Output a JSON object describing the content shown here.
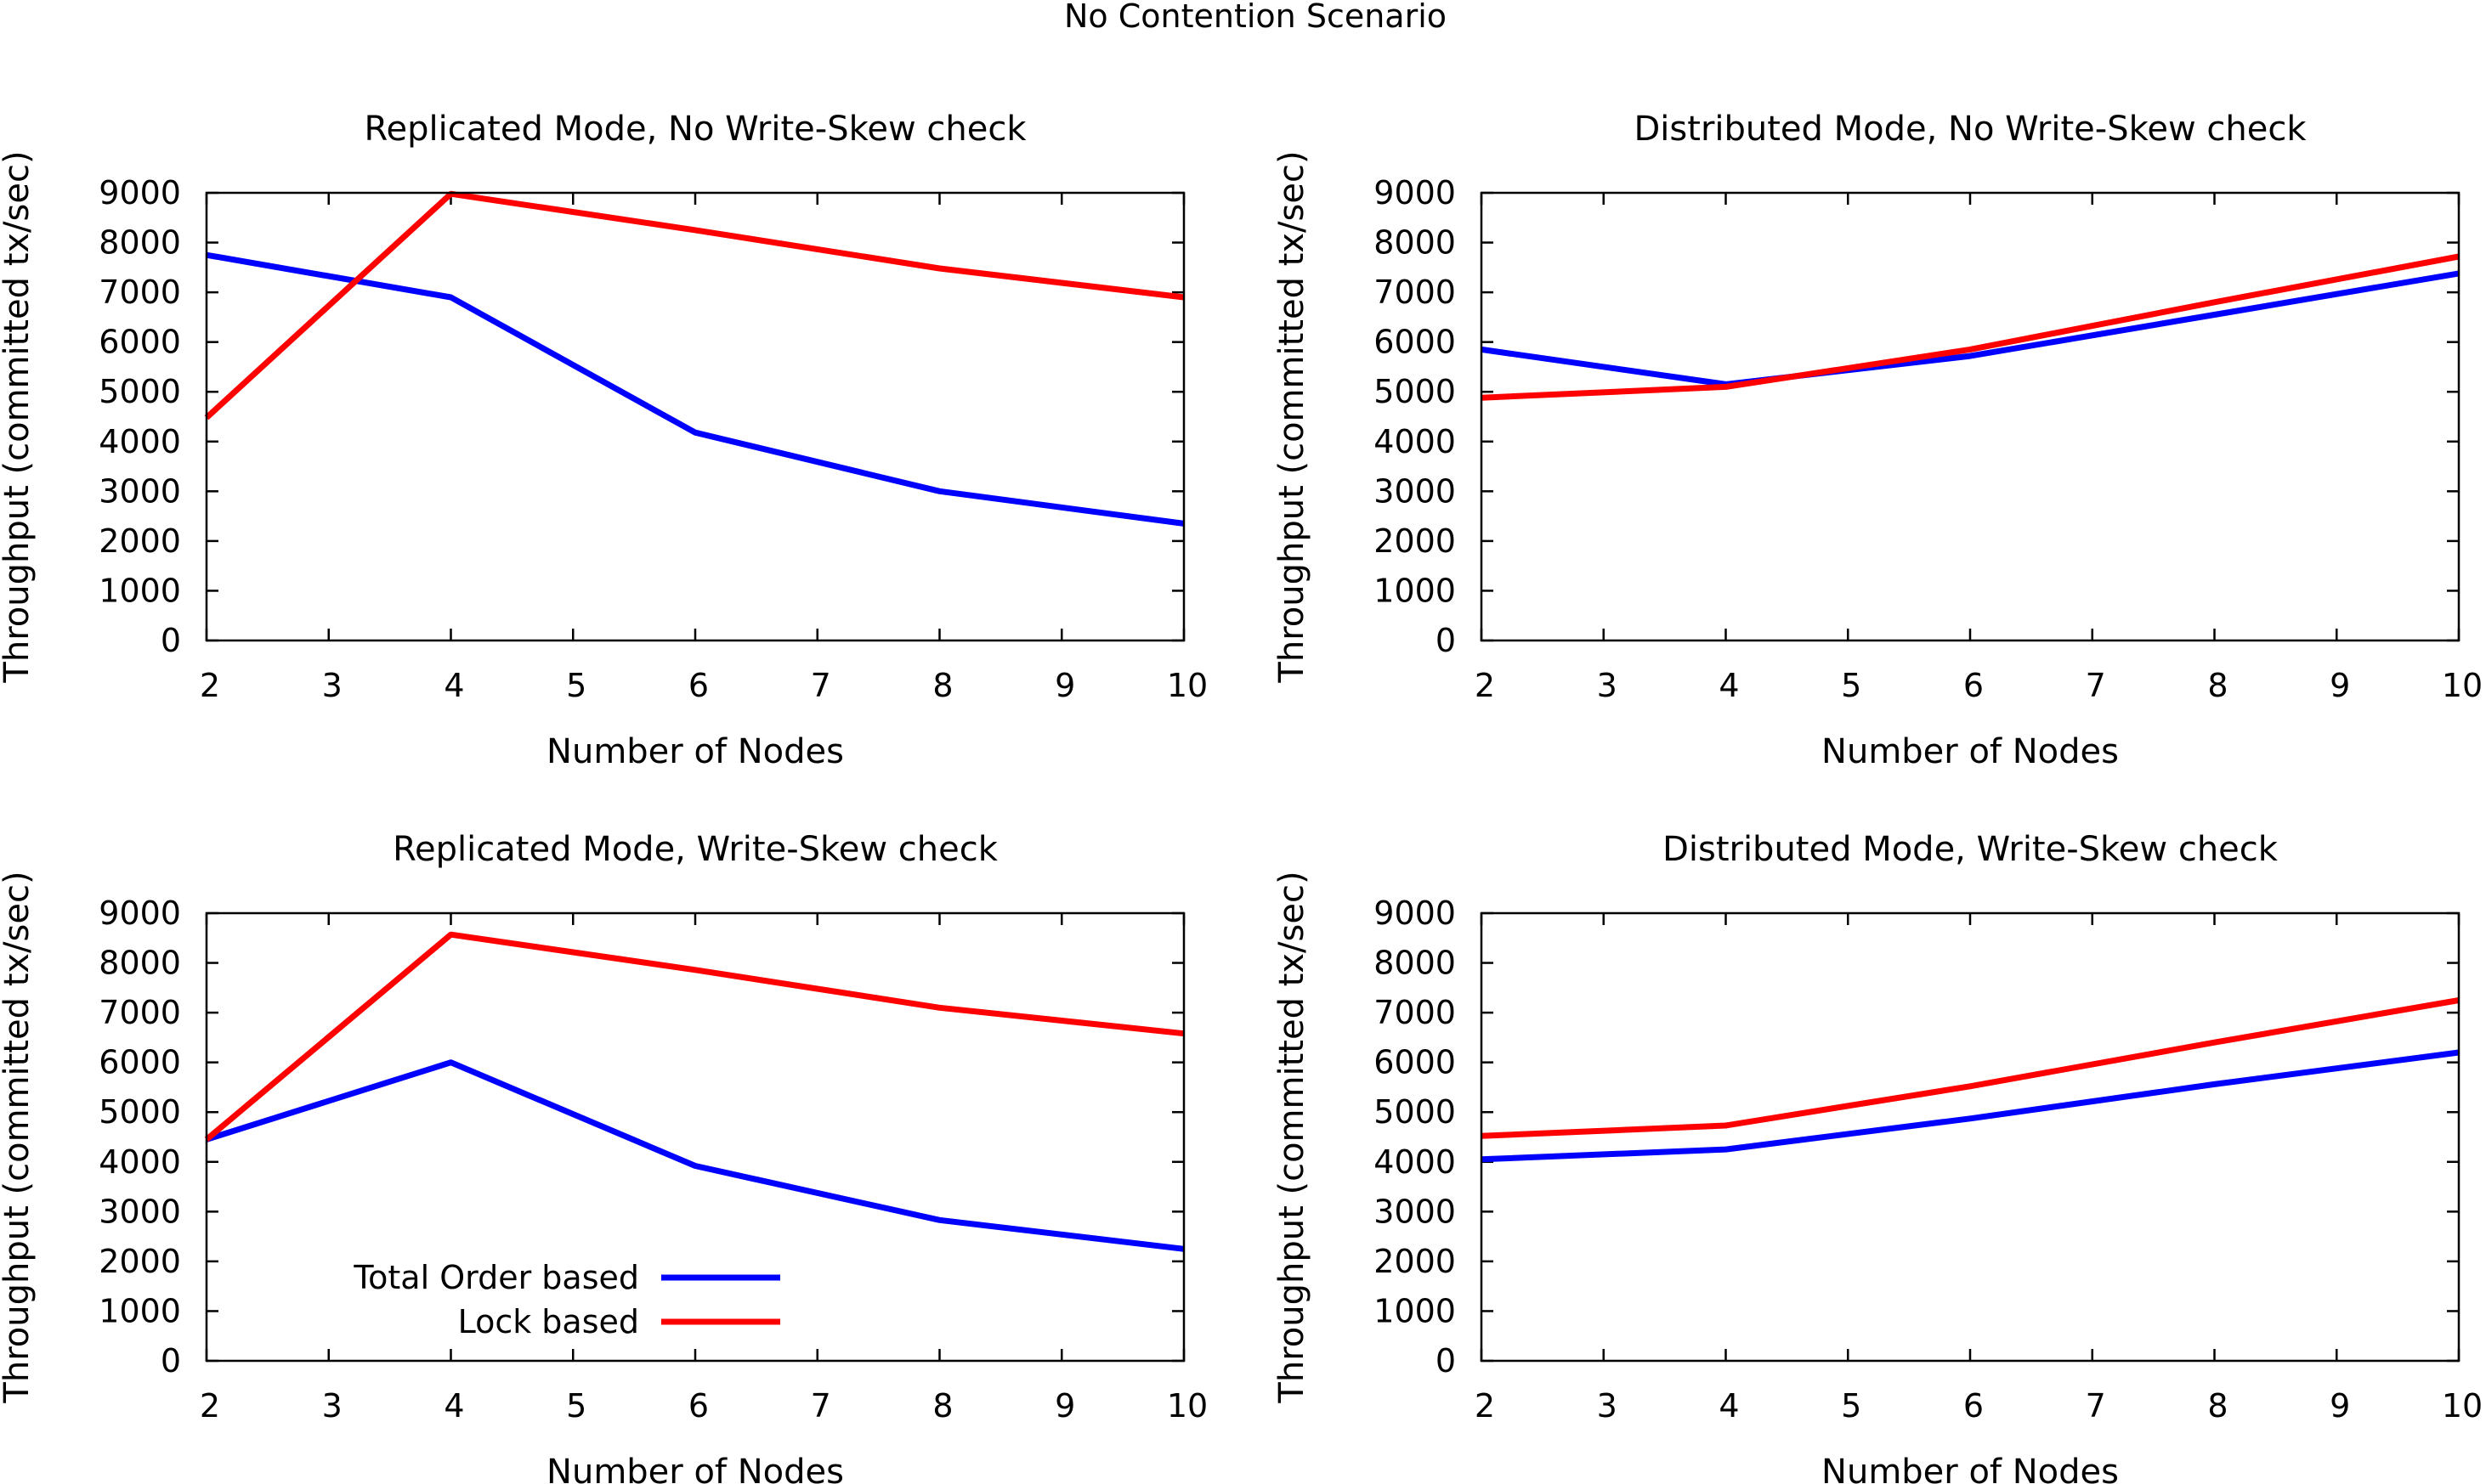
{
  "figure_title": "No Contention Scenario",
  "colors": {
    "total_order": "#0000ff",
    "lock": "#ff0000"
  },
  "chart_data": [
    {
      "type": "line",
      "title": "Replicated Mode, No Write-Skew check",
      "xlabel": "Number of Nodes",
      "ylabel": "Throughput (committed tx/sec)",
      "xlim": [
        2,
        10
      ],
      "ylim": [
        0,
        9000
      ],
      "xticks": [
        2,
        3,
        4,
        5,
        6,
        7,
        8,
        9,
        10
      ],
      "yticks": [
        0,
        1000,
        2000,
        3000,
        4000,
        5000,
        6000,
        7000,
        8000,
        9000
      ],
      "grid": false,
      "series": [
        {
          "name": "Total Order based",
          "color": "#0000ff",
          "x": [
            2,
            4,
            6,
            8,
            10
          ],
          "y": [
            7750,
            6900,
            4180,
            3000,
            2350
          ]
        },
        {
          "name": "Lock based",
          "color": "#ff0000",
          "x": [
            2,
            4,
            6,
            8,
            10
          ],
          "y": [
            4480,
            8980,
            8250,
            7480,
            6900
          ]
        }
      ]
    },
    {
      "type": "line",
      "title": "Distributed Mode, No Write-Skew check",
      "xlabel": "Number of Nodes",
      "ylabel": "Throughput (committed tx/sec)",
      "xlim": [
        2,
        10
      ],
      "ylim": [
        0,
        9000
      ],
      "xticks": [
        2,
        3,
        4,
        5,
        6,
        7,
        8,
        9,
        10
      ],
      "yticks": [
        0,
        1000,
        2000,
        3000,
        4000,
        5000,
        6000,
        7000,
        8000,
        9000
      ],
      "grid": false,
      "series": [
        {
          "name": "Total Order based",
          "color": "#0000ff",
          "x": [
            2,
            4,
            6,
            8,
            10
          ],
          "y": [
            5850,
            5150,
            5720,
            6550,
            7380
          ]
        },
        {
          "name": "Lock based",
          "color": "#ff0000",
          "x": [
            2,
            4,
            6,
            8,
            10
          ],
          "y": [
            4880,
            5100,
            5850,
            6800,
            7720
          ]
        }
      ]
    },
    {
      "type": "line",
      "title": "Replicated Mode, Write-Skew check",
      "xlabel": "Number of Nodes",
      "ylabel": "Throughput (committed tx/sec)",
      "xlim": [
        2,
        10
      ],
      "ylim": [
        0,
        9000
      ],
      "xticks": [
        2,
        3,
        4,
        5,
        6,
        7,
        8,
        9,
        10
      ],
      "yticks": [
        0,
        1000,
        2000,
        3000,
        4000,
        5000,
        6000,
        7000,
        8000,
        9000
      ],
      "grid": false,
      "legend": {
        "position": "bottom-left",
        "entries": [
          {
            "label": "Total Order based",
            "color": "#0000ff"
          },
          {
            "label": "Lock based",
            "color": "#ff0000"
          }
        ]
      },
      "series": [
        {
          "name": "Total Order based",
          "color": "#0000ff",
          "x": [
            2,
            4,
            6,
            8,
            10
          ],
          "y": [
            4450,
            6000,
            3920,
            2830,
            2250
          ]
        },
        {
          "name": "Lock based",
          "color": "#ff0000",
          "x": [
            2,
            4,
            6,
            8,
            10
          ],
          "y": [
            4450,
            8570,
            7860,
            7100,
            6580
          ]
        }
      ]
    },
    {
      "type": "line",
      "title": "Distributed Mode, Write-Skew check",
      "xlabel": "Number of Nodes",
      "ylabel": "Throughput (committed tx/sec)",
      "xlim": [
        2,
        10
      ],
      "ylim": [
        0,
        9000
      ],
      "xticks": [
        2,
        3,
        4,
        5,
        6,
        7,
        8,
        9,
        10
      ],
      "yticks": [
        0,
        1000,
        2000,
        3000,
        4000,
        5000,
        6000,
        7000,
        8000,
        9000
      ],
      "grid": false,
      "series": [
        {
          "name": "Total Order based",
          "color": "#0000ff",
          "x": [
            2,
            4,
            6,
            8,
            10
          ],
          "y": [
            4050,
            4250,
            4870,
            5560,
            6200
          ]
        },
        {
          "name": "Lock based",
          "color": "#ff0000",
          "x": [
            2,
            4,
            6,
            8,
            10
          ],
          "y": [
            4520,
            4730,
            5520,
            6400,
            7250
          ]
        }
      ]
    }
  ]
}
